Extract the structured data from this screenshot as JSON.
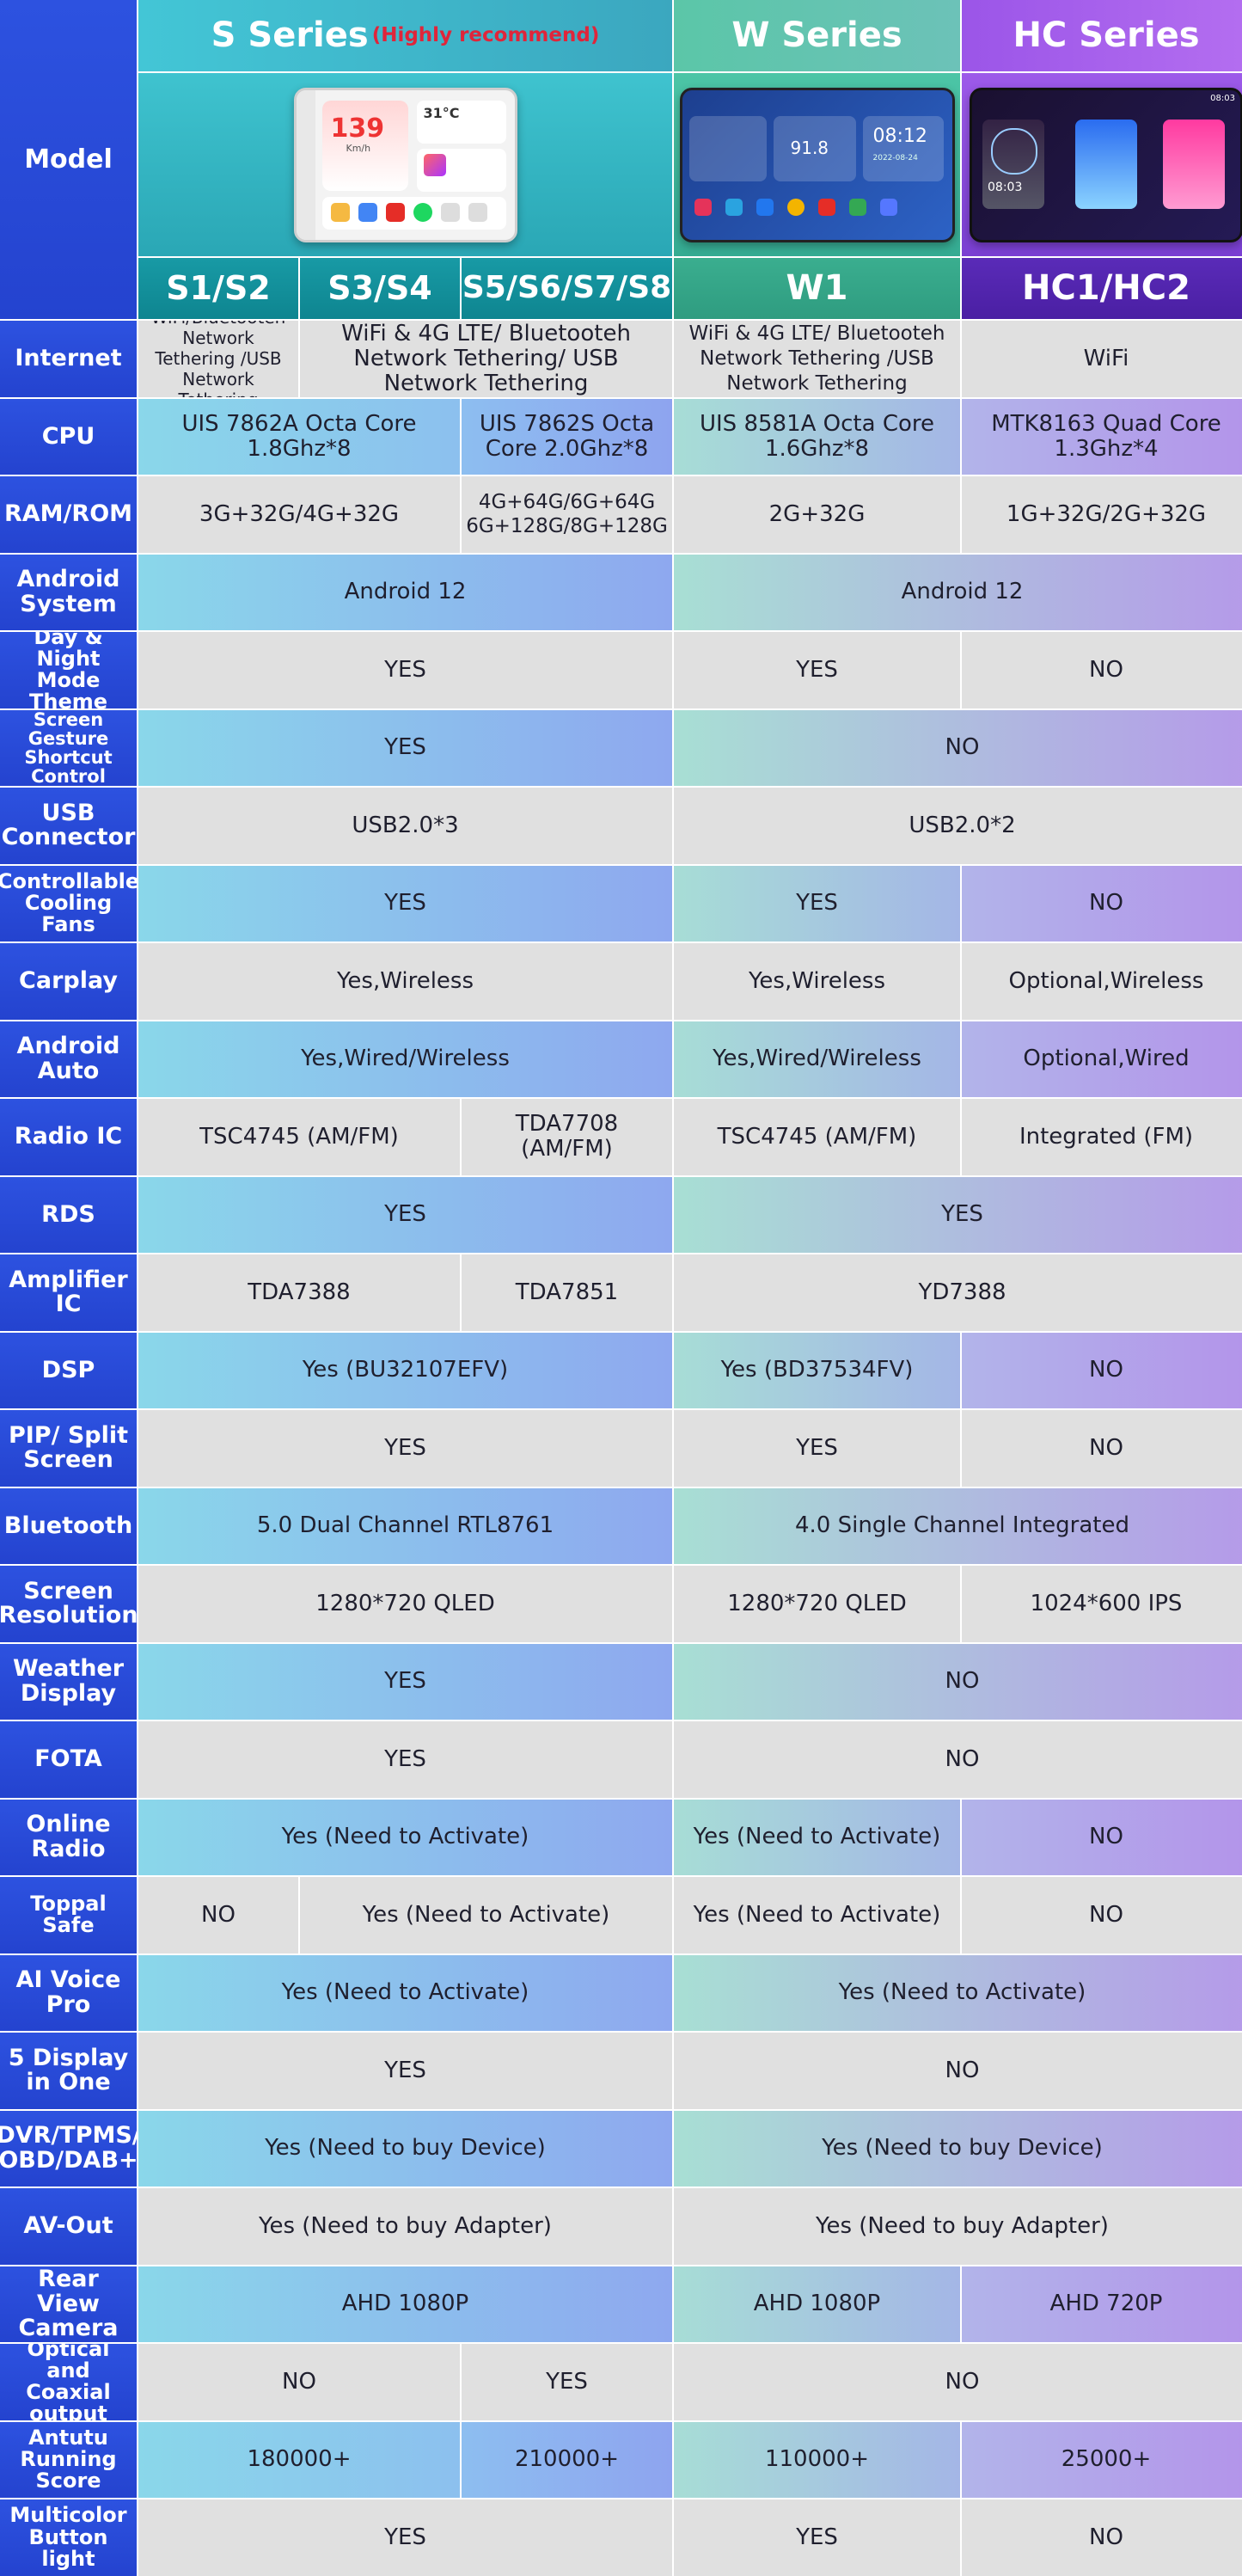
{
  "header": {
    "model_label": "Model",
    "series": [
      {
        "name": "S Series",
        "note": "(Highly recommend)"
      },
      {
        "name": "W Series",
        "note": ""
      },
      {
        "name": "HC Series",
        "note": ""
      }
    ],
    "models": [
      "S1/S2",
      "S3/S4",
      "S5/S6/S7/S8",
      "W1",
      "HC1/HC2"
    ]
  },
  "screens": {
    "s": {
      "temp": "31°C",
      "speed": "139",
      "unit": "Km/h"
    },
    "w": {
      "freq": "91.8",
      "time": "08:12",
      "date": "2022-08-24"
    },
    "hc": {
      "time": "08:03",
      "clock": "08:03"
    }
  },
  "colors": {
    "label_bg": "#2443cf",
    "s_series": "#3ba7bf",
    "w_series": "#5bc6a8",
    "hc_series": "#9b55e8",
    "highlight": "#e0253a"
  },
  "rows": [
    {
      "label": "Internet",
      "cells": [
        "WiFi/Bluetooteh Network Tethering /USB Network Tethering",
        "WiFi & 4G LTE/ Bluetooteh Network Tethering/ USB Network Tethering",
        "WiFi & 4G LTE/ Bluetooteh Network Tethering /USB Network Tethering",
        "WiFi"
      ]
    },
    {
      "label": "CPU",
      "cells": [
        "UIS 7862A Octa Core 1.8Ghz*8",
        "UIS 7862S Octa Core 2.0Ghz*8",
        "UIS 8581A Octa Core 1.6Ghz*8",
        "MTK8163 Quad Core 1.3Ghz*4"
      ]
    },
    {
      "label": "RAM/ROM",
      "cells": [
        "3G+32G/4G+32G",
        "4G+64G/6G+64G 6G+128G/8G+128G",
        "2G+32G",
        "1G+32G/2G+32G"
      ]
    },
    {
      "label": "Android System",
      "cells": [
        "Android 12",
        "Android 12"
      ]
    },
    {
      "label": "Day & Night Mode Theme",
      "cells": [
        "YES",
        "YES",
        "NO"
      ]
    },
    {
      "label": "Screen Gesture Shortcut Control",
      "cells": [
        "YES",
        "NO"
      ]
    },
    {
      "label": "USB Connector",
      "cells": [
        "USB2.0*3",
        "USB2.0*2"
      ]
    },
    {
      "label": "Controllable Cooling Fans",
      "cells": [
        "YES",
        "YES",
        "NO"
      ]
    },
    {
      "label": "Carplay",
      "cells": [
        "Yes,Wireless",
        "Yes,Wireless",
        "Optional,Wireless"
      ]
    },
    {
      "label": "Android Auto",
      "cells": [
        "Yes,Wired/Wireless",
        "Yes,Wired/Wireless",
        "Optional,Wired"
      ]
    },
    {
      "label": "Radio IC",
      "cells": [
        "TSC4745 (AM/FM)",
        "TDA7708 (AM/FM)",
        "TSC4745 (AM/FM)",
        "Integrated (FM)"
      ]
    },
    {
      "label": "RDS",
      "cells": [
        "YES",
        "YES"
      ]
    },
    {
      "label": "Amplifier IC",
      "cells": [
        "TDA7388",
        "TDA7851",
        "YD7388"
      ]
    },
    {
      "label": "DSP",
      "cells": [
        "Yes (BU32107EFV)",
        "Yes (BD37534FV)",
        "NO"
      ]
    },
    {
      "label": "PIP/ Split Screen",
      "cells": [
        "YES",
        "YES",
        "NO"
      ]
    },
    {
      "label": "Bluetooth",
      "cells": [
        "5.0 Dual Channel RTL8761",
        "4.0 Single Channel Integrated"
      ]
    },
    {
      "label": "Screen Resolution",
      "cells": [
        "1280*720 QLED",
        "1280*720 QLED",
        "1024*600 IPS"
      ]
    },
    {
      "label": "Weather Display",
      "cells": [
        "YES",
        "NO"
      ]
    },
    {
      "label": "FOTA",
      "cells": [
        "YES",
        "NO"
      ]
    },
    {
      "label": "Online Radio",
      "cells": [
        "Yes (Need to Activate)",
        "Yes (Need to Activate)",
        "NO"
      ]
    },
    {
      "label": "Toppal Safe",
      "cells": [
        "NO",
        "Yes (Need to Activate)",
        "Yes (Need to Activate)",
        "NO"
      ]
    },
    {
      "label": "AI Voice Pro",
      "cells": [
        "Yes (Need to Activate)",
        "Yes (Need to Activate)"
      ]
    },
    {
      "label": "5 Display in One",
      "cells": [
        "YES",
        "NO"
      ]
    },
    {
      "label": "DVR/TPMS/ OBD/DAB+",
      "cells": [
        "Yes (Need to buy Device)",
        "Yes (Need to buy Device)"
      ]
    },
    {
      "label": "AV-Out",
      "cells": [
        "Yes (Need to buy Adapter)",
        "Yes (Need to buy Adapter)"
      ]
    },
    {
      "label": "Rear View Camera",
      "cells": [
        "AHD 1080P",
        "AHD 1080P",
        "AHD 720P"
      ]
    },
    {
      "label": "Optical and Coaxial output",
      "cells": [
        "NO",
        "YES",
        "NO"
      ]
    },
    {
      "label": "Antutu Running Score",
      "cells": [
        "180000+",
        "210000+",
        "110000+",
        "25000+"
      ]
    },
    {
      "label": "Multicolor Button light",
      "cells": [
        "YES",
        "YES",
        "NO"
      ]
    }
  ]
}
